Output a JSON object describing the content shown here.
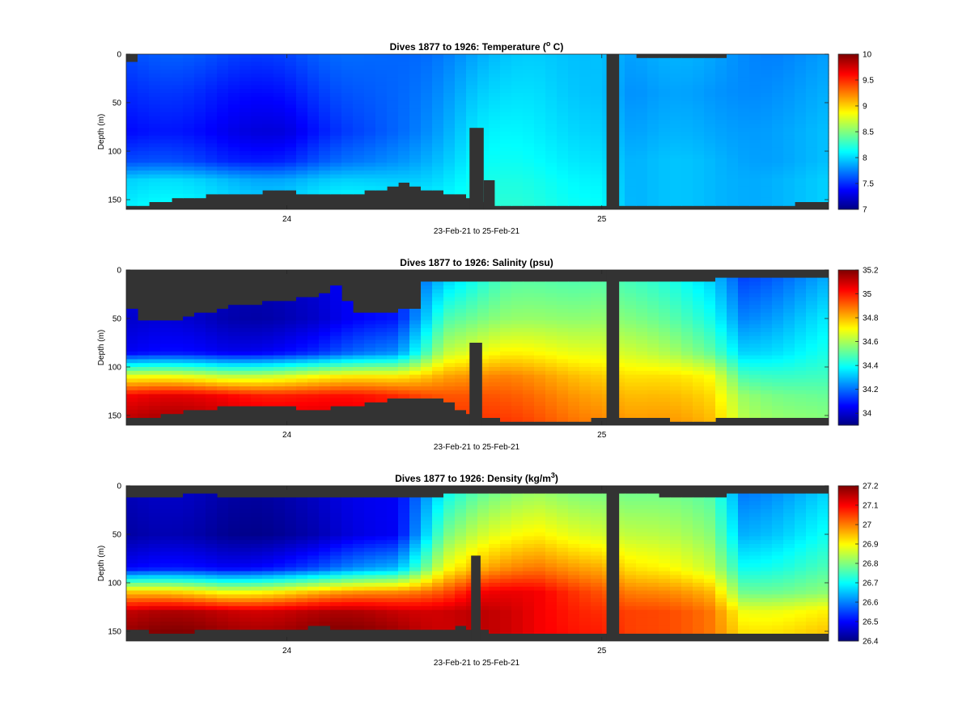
{
  "chart_data": [
    {
      "type": "heatmap",
      "title": "Dives 1877 to 1926: Temperature (",
      "title_sup": "o",
      "title_tail": " C)",
      "xlabel": "23-Feb-21 to 25-Feb-21",
      "ylabel": "Depth (m)",
      "xlim": [
        23.49,
        25.72
      ],
      "ylim": [
        160,
        0
      ],
      "x_ticks": [
        {
          "value": 24,
          "label": "24"
        },
        {
          "value": 25,
          "label": "25"
        }
      ],
      "y_ticks": [
        0,
        50,
        100,
        150
      ],
      "colormap": "jet",
      "clim": [
        7,
        10
      ],
      "colorbar_ticks": [
        7,
        7.5,
        8,
        8.5,
        9,
        9.5,
        10
      ],
      "nodata_color": "#333333",
      "surface_profile": [
        [
          23.49,
          15
        ],
        [
          23.52,
          2
        ],
        [
          23.6,
          0
        ],
        [
          23.9,
          0
        ],
        [
          24.2,
          0
        ],
        [
          24.5,
          0
        ],
        [
          25.0,
          0
        ],
        [
          25.15,
          3
        ],
        [
          25.4,
          2
        ],
        [
          25.72,
          2
        ]
      ],
      "bottom_profile": [
        [
          23.49,
          154
        ],
        [
          23.55,
          155
        ],
        [
          23.62,
          150
        ],
        [
          23.7,
          148
        ],
        [
          23.78,
          144
        ],
        [
          23.85,
          143
        ],
        [
          23.92,
          142
        ],
        [
          24.0,
          141
        ],
        [
          24.1,
          144
        ],
        [
          24.2,
          143
        ],
        [
          24.3,
          140
        ],
        [
          24.36,
          133
        ],
        [
          24.42,
          138
        ],
        [
          24.48,
          140
        ],
        [
          24.55,
          145
        ],
        [
          24.61,
          153
        ],
        [
          24.7,
          155
        ],
        [
          25.0,
          155
        ],
        [
          25.3,
          157
        ],
        [
          25.5,
          155
        ],
        [
          25.72,
          153
        ]
      ],
      "gaps": [
        {
          "x0": 24.58,
          "x1": 24.625,
          "top": 76
        },
        {
          "x0": 24.625,
          "x1": 24.66,
          "top": 130
        },
        {
          "x0": 25.015,
          "x1": 25.055,
          "top": 0
        }
      ],
      "layers": [
        {
          "x": 23.49,
          "z": [
            7.6,
            7.5,
            7.4,
            7.6,
            8.0,
            8.1
          ]
        },
        {
          "x": 23.8,
          "z": [
            7.6,
            7.45,
            7.35,
            7.5,
            7.95,
            8.1
          ]
        },
        {
          "x": 24.0,
          "z": [
            7.6,
            7.45,
            7.3,
            7.5,
            7.9,
            8.1
          ]
        },
        {
          "x": 24.25,
          "z": [
            7.65,
            7.6,
            7.55,
            7.7,
            7.95,
            8.15
          ]
        },
        {
          "x": 24.45,
          "z": [
            7.75,
            7.8,
            7.85,
            7.95,
            8.05,
            8.2
          ]
        },
        {
          "x": 24.6,
          "z": [
            7.85,
            7.95,
            8.05,
            8.1,
            8.15,
            8.2
          ]
        },
        {
          "x": 24.8,
          "z": [
            7.95,
            8.0,
            8.05,
            8.1,
            8.15,
            8.2
          ]
        },
        {
          "x": 25.0,
          "z": [
            8.0,
            8.0,
            8.05,
            8.1,
            8.15,
            8.2
          ]
        },
        {
          "x": 25.1,
          "z": [
            7.85,
            7.8,
            7.85,
            7.9,
            7.9,
            7.9
          ]
        },
        {
          "x": 25.35,
          "z": [
            7.85,
            7.8,
            7.85,
            7.9,
            7.9,
            7.9
          ]
        },
        {
          "x": 25.55,
          "z": [
            7.8,
            7.85,
            7.9,
            7.9,
            7.95,
            7.95
          ]
        },
        {
          "x": 25.72,
          "z": [
            7.8,
            7.85,
            7.9,
            7.9,
            7.95,
            7.95
          ]
        }
      ],
      "layer_depths": [
        0,
        40,
        80,
        110,
        130,
        160
      ]
    },
    {
      "type": "heatmap",
      "title": "Dives 1877 to 1926: Salinity (psu)",
      "title_sup": "",
      "title_tail": "",
      "xlabel": "23-Feb-21 to 25-Feb-21",
      "ylabel": "Depth (m)",
      "xlim": [
        23.49,
        25.72
      ],
      "ylim": [
        160,
        0
      ],
      "x_ticks": [
        {
          "value": 24,
          "label": "24"
        },
        {
          "value": 25,
          "label": "25"
        }
      ],
      "y_ticks": [
        0,
        50,
        100,
        150
      ],
      "colormap": "jet",
      "clim": [
        33.9,
        35.2
      ],
      "colorbar_ticks": [
        34,
        34.2,
        34.4,
        34.6,
        34.8,
        35,
        35.2
      ],
      "nodata_color": "#333333",
      "surface_profile": [
        [
          23.49,
          36
        ],
        [
          23.55,
          52
        ],
        [
          23.62,
          52
        ],
        [
          23.7,
          47
        ],
        [
          23.78,
          43
        ],
        [
          23.85,
          36
        ],
        [
          23.92,
          34
        ],
        [
          24.0,
          32
        ],
        [
          24.05,
          27
        ],
        [
          24.1,
          30
        ],
        [
          24.15,
          14
        ],
        [
          24.18,
          28
        ],
        [
          24.23,
          46
        ],
        [
          24.3,
          44
        ],
        [
          24.38,
          40
        ],
        [
          24.41,
          38
        ],
        [
          24.44,
          12
        ],
        [
          24.5,
          10
        ],
        [
          24.6,
          12
        ],
        [
          24.7,
          10
        ],
        [
          25.0,
          12
        ],
        [
          25.1,
          10
        ],
        [
          25.3,
          14
        ],
        [
          25.4,
          8
        ],
        [
          25.72,
          9
        ]
      ],
      "bottom_profile": [
        [
          23.49,
          150
        ],
        [
          23.55,
          152
        ],
        [
          23.62,
          148
        ],
        [
          23.7,
          145
        ],
        [
          23.8,
          140
        ],
        [
          23.9,
          139
        ],
        [
          24.0,
          140
        ],
        [
          24.08,
          145
        ],
        [
          24.15,
          140
        ],
        [
          24.25,
          138
        ],
        [
          24.35,
          132
        ],
        [
          24.42,
          130
        ],
        [
          24.5,
          135
        ],
        [
          24.58,
          148
        ],
        [
          24.65,
          152
        ],
        [
          24.7,
          155
        ],
        [
          24.9,
          155
        ],
        [
          25.0,
          153
        ],
        [
          25.1,
          153
        ],
        [
          25.3,
          155
        ],
        [
          25.5,
          152
        ],
        [
          25.72,
          152
        ]
      ],
      "gaps": [
        {
          "x0": 24.58,
          "x1": 24.62,
          "top": 75
        },
        {
          "x0": 25.015,
          "x1": 25.055,
          "top": 0
        }
      ],
      "layers": [
        {
          "x": 23.49,
          "z": [
            34.05,
            34.0,
            34.05,
            34.7,
            35.05,
            35.15
          ]
        },
        {
          "x": 23.8,
          "z": [
            34.0,
            33.97,
            34.05,
            34.65,
            35.05,
            35.15
          ]
        },
        {
          "x": 24.1,
          "z": [
            34.0,
            33.98,
            34.1,
            34.7,
            35.0,
            35.1
          ]
        },
        {
          "x": 24.35,
          "z": [
            34.1,
            34.1,
            34.25,
            34.75,
            35.0,
            35.05
          ]
        },
        {
          "x": 24.5,
          "z": [
            34.3,
            34.5,
            34.65,
            34.85,
            34.95,
            35.0
          ]
        },
        {
          "x": 24.7,
          "z": [
            34.45,
            34.55,
            34.7,
            34.85,
            34.9,
            34.95
          ]
        },
        {
          "x": 25.0,
          "z": [
            34.5,
            34.6,
            34.7,
            34.8,
            34.85,
            34.9
          ]
        },
        {
          "x": 25.1,
          "z": [
            34.45,
            34.55,
            34.65,
            34.75,
            34.8,
            34.85
          ]
        },
        {
          "x": 25.35,
          "z": [
            34.3,
            34.4,
            34.5,
            34.7,
            34.75,
            34.8
          ]
        },
        {
          "x": 25.45,
          "z": [
            34.15,
            34.25,
            34.35,
            34.5,
            34.6,
            34.65
          ]
        },
        {
          "x": 25.72,
          "z": [
            34.25,
            34.35,
            34.4,
            34.45,
            34.5,
            34.55
          ]
        }
      ],
      "layer_depths": [
        0,
        50,
        85,
        110,
        130,
        160
      ]
    },
    {
      "type": "heatmap",
      "title": "Dives 1877 to 1926: Density (kg/m",
      "title_sup": "3",
      "title_tail": ")",
      "xlabel": "23-Feb-21 to 25-Feb-21",
      "ylabel": "Depth (m)",
      "xlim": [
        23.49,
        25.72
      ],
      "ylim": [
        160,
        0
      ],
      "x_ticks": [
        {
          "value": 24,
          "label": "24"
        },
        {
          "value": 25,
          "label": "25"
        }
      ],
      "y_ticks": [
        0,
        50,
        100,
        150
      ],
      "colormap": "jet",
      "clim": [
        26.4,
        27.2
      ],
      "colorbar_ticks": [
        26.4,
        26.5,
        26.6,
        26.7,
        26.8,
        26.9,
        27,
        27.1,
        27.2
      ],
      "nodata_color": "#333333",
      "surface_profile": [
        [
          23.49,
          14
        ],
        [
          23.6,
          13
        ],
        [
          23.7,
          8
        ],
        [
          23.8,
          11
        ],
        [
          24.0,
          10
        ],
        [
          24.1,
          12
        ],
        [
          24.2,
          10
        ],
        [
          24.35,
          12
        ],
        [
          24.45,
          14
        ],
        [
          24.5,
          10
        ],
        [
          25.0,
          10
        ],
        [
          25.1,
          8
        ],
        [
          25.3,
          14
        ],
        [
          25.4,
          10
        ],
        [
          25.72,
          8
        ]
      ],
      "bottom_profile": [
        [
          23.49,
          148
        ],
        [
          23.6,
          152
        ],
        [
          23.7,
          150
        ],
        [
          23.8,
          148
        ],
        [
          23.9,
          150
        ],
        [
          24.0,
          148
        ],
        [
          24.1,
          145
        ],
        [
          24.2,
          148
        ],
        [
          24.3,
          146
        ],
        [
          24.4,
          147
        ],
        [
          24.5,
          148
        ],
        [
          24.55,
          145
        ],
        [
          24.62,
          148
        ],
        [
          24.7,
          153
        ],
        [
          24.9,
          152
        ],
        [
          25.0,
          150
        ],
        [
          25.1,
          152
        ],
        [
          25.3,
          154
        ],
        [
          25.5,
          152
        ],
        [
          25.72,
          150
        ]
      ],
      "gaps": [
        {
          "x0": 24.585,
          "x1": 24.615,
          "top": 72
        },
        {
          "x0": 25.015,
          "x1": 25.055,
          "top": 0
        }
      ],
      "layers": [
        {
          "x": 23.49,
          "z": [
            26.45,
            26.43,
            26.5,
            26.95,
            27.15,
            27.2
          ]
        },
        {
          "x": 23.8,
          "z": [
            26.44,
            26.42,
            26.5,
            26.9,
            27.15,
            27.2
          ]
        },
        {
          "x": 24.1,
          "z": [
            26.45,
            26.43,
            26.55,
            26.95,
            27.15,
            27.2
          ]
        },
        {
          "x": 24.35,
          "z": [
            26.5,
            26.5,
            26.65,
            27.0,
            27.15,
            27.2
          ]
        },
        {
          "x": 24.5,
          "z": [
            26.7,
            26.8,
            26.9,
            27.05,
            27.15,
            27.15
          ]
        },
        {
          "x": 24.6,
          "z": [
            26.75,
            26.85,
            26.95,
            27.1,
            27.15,
            27.15
          ]
        },
        {
          "x": 24.8,
          "z": [
            26.8,
            26.9,
            27.0,
            27.1,
            27.1,
            27.1
          ]
        },
        {
          "x": 25.0,
          "z": [
            26.8,
            26.88,
            26.98,
            27.05,
            27.08,
            27.1
          ]
        },
        {
          "x": 25.1,
          "z": [
            26.78,
            26.85,
            26.92,
            27.0,
            27.05,
            27.05
          ]
        },
        {
          "x": 25.35,
          "z": [
            26.75,
            26.8,
            26.85,
            26.95,
            27.0,
            27.0
          ]
        },
        {
          "x": 25.45,
          "z": [
            26.6,
            26.65,
            26.72,
            26.8,
            26.9,
            26.95
          ]
        },
        {
          "x": 25.72,
          "z": [
            26.65,
            26.7,
            26.75,
            26.8,
            26.9,
            26.95
          ]
        }
      ],
      "layer_depths": [
        0,
        50,
        85,
        110,
        130,
        160
      ]
    }
  ]
}
